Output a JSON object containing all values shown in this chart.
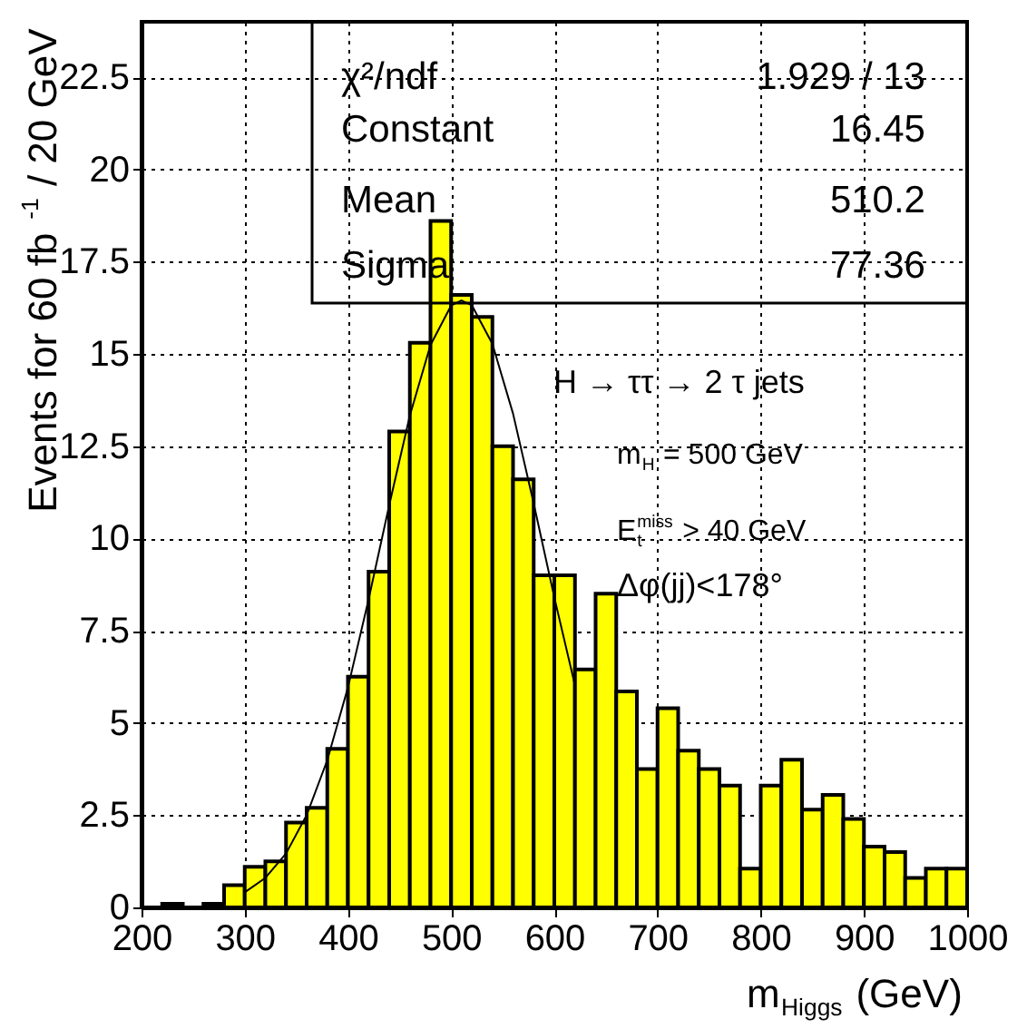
{
  "chart_data": {
    "type": "histogram",
    "xlabel": "m$_{Higgs}$ (GeV)",
    "ylabel": "Events for 60 fb$^{-1}$ / 20 GeV",
    "xlim": [
      200,
      1000
    ],
    "xticks": [
      200,
      300,
      400,
      500,
      600,
      700,
      800,
      900,
      1000
    ],
    "ylim": [
      0,
      24
    ],
    "yticks": [
      0,
      2.5,
      5,
      7.5,
      10,
      12.5,
      15,
      17.5,
      20,
      22.5
    ],
    "grid": true,
    "series": [
      {
        "type": "histogram",
        "color": "#ffff00",
        "bins": [
          200,
          220,
          240,
          260,
          280,
          300,
          320,
          340,
          360,
          380,
          400,
          420,
          440,
          460,
          480,
          500,
          520,
          540,
          560,
          580,
          600,
          620,
          640,
          660,
          680,
          700,
          720,
          740,
          760,
          780,
          800,
          820,
          840,
          860,
          880,
          900,
          920,
          940,
          960,
          980,
          1000
        ],
        "values": [
          0,
          0.1,
          0,
          0.1,
          0.6,
          1.1,
          1.25,
          2.3,
          2.7,
          4.3,
          6.25,
          9.1,
          12.9,
          15.3,
          18.6,
          16.6,
          16.0,
          12.5,
          11.6,
          9.0,
          9.0,
          6.45,
          8.5,
          5.85,
          3.75,
          5.4,
          4.25,
          3.75,
          3.3,
          1.05,
          3.3,
          4.0,
          2.65,
          3.05,
          2.4,
          1.65,
          1.5,
          0.8,
          1.05,
          1.05
        ]
      },
      {
        "type": "line",
        "color": "#000000",
        "x": [
          300,
          320,
          340,
          360,
          380,
          400,
          420,
          440,
          460,
          480,
          500,
          510,
          520,
          540,
          560,
          580,
          600,
          620
        ],
        "values": [
          0.41,
          0.8,
          1.46,
          2.5,
          3.99,
          5.96,
          8.34,
          10.9,
          13.33,
          15.24,
          16.31,
          16.45,
          16.32,
          15.27,
          13.38,
          10.95,
          8.4,
          6.02
        ]
      }
    ],
    "annotations": [
      "χ²/ndf",
      "1.929    /    13",
      "Constant",
      "16.45",
      "Mean",
      "510.2",
      "Sigma",
      "77.36",
      "H → ττ → 2 τ jets",
      "m$_{H}$ = 500 GeV",
      "E$_{t}$$^{miss}$ > 40 GeV",
      "Δφ(jj)<178°"
    ]
  }
}
